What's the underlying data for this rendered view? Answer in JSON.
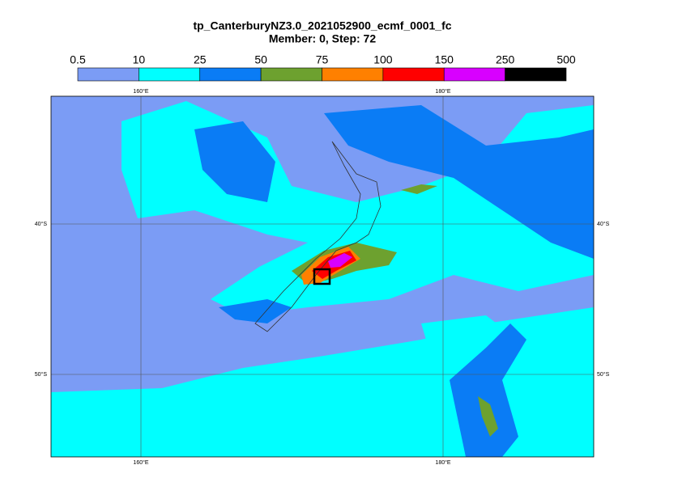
{
  "title": {
    "line1": "tp_CanterburyNZ3.0_2021052900_ecmf_0001_fc",
    "line2": "Member: 0, Step: 72"
  },
  "colorbar": {
    "levels": [
      "0.5",
      "10",
      "25",
      "50",
      "75",
      "100",
      "150",
      "250",
      "500"
    ],
    "colors": [
      "#7b9cf5",
      "#00ffff",
      "#0a7cf5",
      "#6da12f",
      "#ff8000",
      "#ff0000",
      "#d800ff",
      "#000000"
    ]
  },
  "map": {
    "lon_labels": [
      "160°E",
      "180°E"
    ],
    "lat_labels": [
      "40°S",
      "50°S"
    ]
  }
}
